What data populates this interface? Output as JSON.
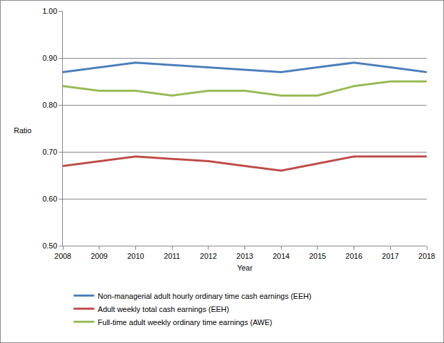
{
  "chart_data": {
    "type": "line",
    "x_label": "Year",
    "y_label": "Ratio",
    "categories": [
      "2008",
      "2009",
      "2010",
      "2011",
      "2012",
      "2013",
      "2014",
      "2015",
      "2016",
      "2017",
      "2018"
    ],
    "series": [
      {
        "name": "Non-managerial adult hourly ordinary time cash earnings (EEH)",
        "color": "#4a7ebb",
        "values": [
          0.87,
          0.88,
          0.89,
          0.885,
          0.88,
          0.875,
          0.87,
          0.88,
          0.89,
          0.88,
          0.87
        ]
      },
      {
        "name": "Adult weekly total cash earnings (EEH)",
        "color": "#be4b48",
        "values": [
          0.67,
          0.68,
          0.69,
          0.685,
          0.68,
          0.67,
          0.66,
          0.675,
          0.69,
          0.69,
          0.69
        ]
      },
      {
        "name": "Full-time adult weekly ordinary time earnings (AWE)",
        "color": "#98b954",
        "values": [
          0.84,
          0.83,
          0.83,
          0.82,
          0.83,
          0.83,
          0.82,
          0.82,
          0.84,
          0.85,
          0.85
        ]
      }
    ],
    "ylim": [
      0.5,
      1.0
    ],
    "yticks": [
      {
        "value": 0.5,
        "label": "0.50"
      },
      {
        "value": 0.6,
        "label": "0.60"
      },
      {
        "value": 0.7,
        "label": "0.70"
      },
      {
        "value": 0.8,
        "label": "0.80"
      },
      {
        "value": 0.9,
        "label": "0.90"
      },
      {
        "value": 1.0,
        "label": "1.00"
      }
    ],
    "grid": true,
    "legend": "bottom"
  }
}
